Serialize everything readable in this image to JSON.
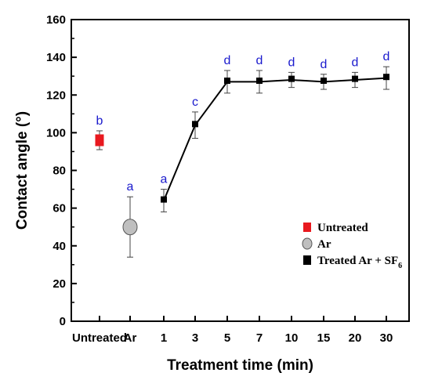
{
  "chart_data": {
    "type": "scatter",
    "title": "",
    "xlabel": "Treatment time (min)",
    "ylabel": "Contact angle (°)",
    "ylim": [
      0,
      160
    ],
    "yticks": [
      0,
      20,
      40,
      60,
      80,
      100,
      120,
      140,
      160
    ],
    "categories": [
      "Untreated",
      "Ar",
      "1",
      "3",
      "5",
      "7",
      "10",
      "15",
      "20",
      "30"
    ],
    "grid": false,
    "legend_position": "lower-right",
    "series": [
      {
        "name": "Untreated",
        "marker": "square",
        "color": "#e8191f",
        "connected": false,
        "points": [
          {
            "x": "Untreated",
            "y": 96,
            "err": 5,
            "label": "b"
          }
        ]
      },
      {
        "name": "Ar",
        "marker": "circle",
        "color": "#bfbfbf",
        "connected": false,
        "points": [
          {
            "x": "Ar",
            "y": 50,
            "err": 16,
            "label": "a"
          }
        ]
      },
      {
        "name_text": "Treated Ar + SF",
        "name_sub": "6",
        "marker": "square",
        "color": "#000000",
        "connected": true,
        "points": [
          {
            "x": "1",
            "y": 64,
            "err": 6,
            "label": "a"
          },
          {
            "x": "3",
            "y": 104,
            "err": 7,
            "label": "c"
          },
          {
            "x": "5",
            "y": 127,
            "err": 6,
            "label": "d"
          },
          {
            "x": "7",
            "y": 127,
            "err": 6,
            "label": "d"
          },
          {
            "x": "10",
            "y": 128,
            "err": 4,
            "label": "d"
          },
          {
            "x": "15",
            "y": 127,
            "err": 4,
            "label": "d"
          },
          {
            "x": "20",
            "y": 128,
            "err": 4,
            "label": "d"
          },
          {
            "x": "30",
            "y": 129,
            "err": 6,
            "label": "d"
          }
        ]
      }
    ],
    "label_color": "#1a1acd"
  }
}
